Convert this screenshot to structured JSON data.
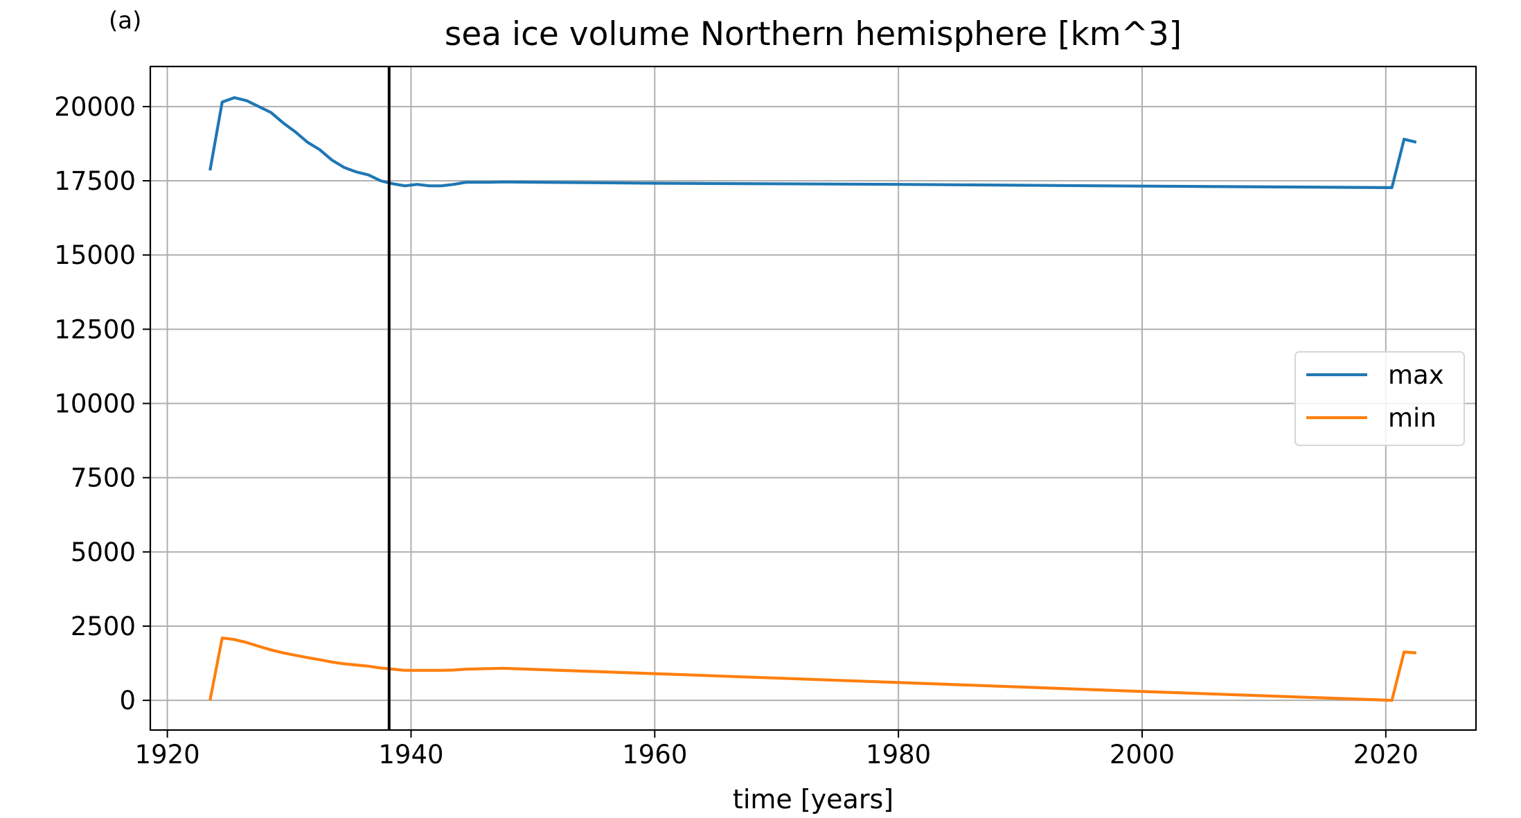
{
  "chart_data": {
    "type": "line",
    "panel_label": "(a)",
    "title": "sea ice volume Northern hemisphere [km^3]",
    "xlabel": "time [years]",
    "ylabel": "",
    "xlim": [
      1918.6,
      2027.4
    ],
    "ylim": [
      -1000,
      21350
    ],
    "xticks": [
      1920,
      1940,
      1960,
      1980,
      2000,
      2020
    ],
    "yticks": [
      0,
      2500,
      5000,
      7500,
      10000,
      12500,
      15000,
      17500,
      20000
    ],
    "grid": true,
    "legend": {
      "position": "center-right",
      "entries": [
        "max",
        "min"
      ]
    },
    "vertical_line": {
      "x": 1938.2,
      "color": "#000000"
    },
    "series": [
      {
        "name": "max",
        "color": "#1f77b4",
        "x": [
          1923.5,
          1924.5,
          1925.5,
          1926.5,
          1927.5,
          1928.5,
          1929.5,
          1930.5,
          1931.5,
          1932.5,
          1933.5,
          1934.5,
          1935.5,
          1936.5,
          1937.5,
          1938.5,
          1939.5,
          1940.5,
          1941.5,
          1942.5,
          1943.5,
          1944.5,
          1945.5,
          1946.5,
          1947.5,
          1960,
          1980,
          2000,
          2020.5,
          2021.5,
          2022.5
        ],
        "y": [
          17850,
          20150,
          20300,
          20200,
          20000,
          19800,
          19450,
          19150,
          18800,
          18550,
          18200,
          17950,
          17800,
          17700,
          17500,
          17400,
          17330,
          17380,
          17330,
          17330,
          17380,
          17450,
          17450,
          17450,
          17460,
          17420,
          17380,
          17320,
          17270,
          18900,
          18800
        ]
      },
      {
        "name": "min",
        "color": "#ff7f0e",
        "x": [
          1923.5,
          1924.5,
          1925.5,
          1926.5,
          1927.5,
          1928.5,
          1929.5,
          1930.5,
          1931.5,
          1932.5,
          1933.5,
          1934.5,
          1935.5,
          1936.5,
          1937.5,
          1938.5,
          1939.5,
          1940.5,
          1941.5,
          1942.5,
          1943.5,
          1944.5,
          1945.5,
          1946.5,
          1947.5,
          1960,
          1980,
          2000,
          2020.5,
          2021.5,
          2022.5
        ],
        "y": [
          0,
          2100,
          2050,
          1950,
          1820,
          1700,
          1600,
          1520,
          1440,
          1370,
          1290,
          1230,
          1190,
          1150,
          1090,
          1050,
          1010,
          1010,
          1010,
          1010,
          1020,
          1050,
          1060,
          1070,
          1080,
          900,
          600,
          300,
          0,
          1630,
          1600
        ]
      }
    ]
  }
}
